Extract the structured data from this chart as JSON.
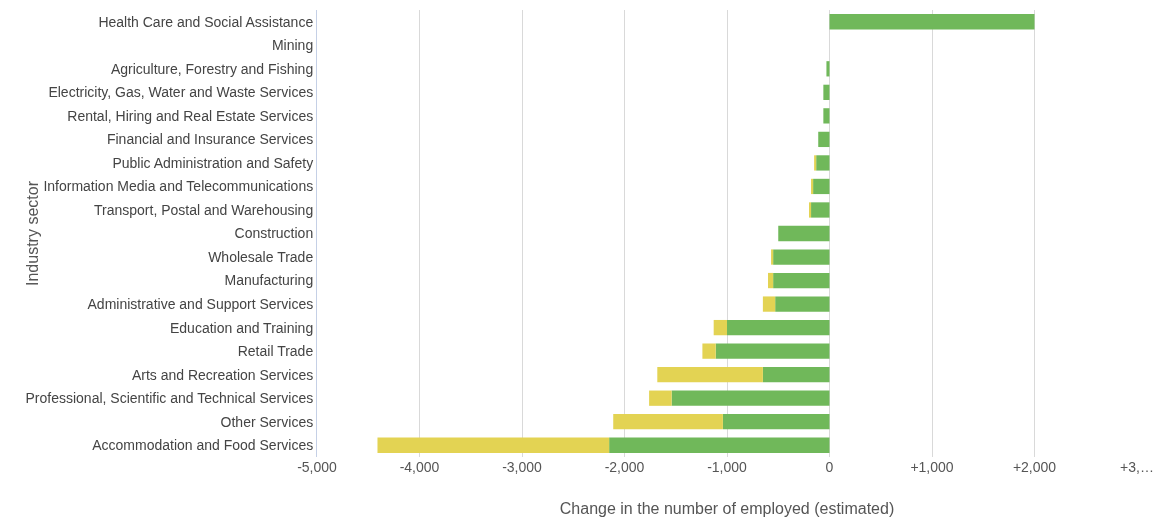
{
  "chart_data": {
    "type": "bar",
    "orientation": "horizontal",
    "stacked": true,
    "xlabel": "Change in the number of employed (estimated)",
    "ylabel": "Industry sector",
    "categories": [
      "Health Care and Social Assistance",
      "Mining",
      "Agriculture, Forestry and Fishing",
      "Electricity, Gas, Water and Waste Services",
      "Rental, Hiring and Real Estate Services",
      "Financial and Insurance Services",
      "Public Administration and Safety",
      "Information Media and Telecommunications",
      "Transport, Postal and Warehousing",
      "Construction",
      "Wholesale Trade",
      "Manufacturing",
      "Administrative and Support Services",
      "Education and Training",
      "Retail Trade",
      "Arts and Recreation Services",
      "Professional, Scientific and Technical Services",
      "Other Services",
      "Accommodation and Food Services"
    ],
    "series": [
      {
        "color": "#70b85a",
        "values": [
          2000,
          0,
          -30,
          -60,
          -60,
          -110,
          -130,
          -160,
          -180,
          -500,
          -550,
          -550,
          -530,
          -1000,
          -1110,
          -650,
          -1540,
          -1040,
          -2150
        ]
      },
      {
        "color": "#e3d353",
        "values": [
          0,
          0,
          0,
          0,
          0,
          0,
          -20,
          -20,
          -20,
          0,
          -20,
          -50,
          -120,
          -130,
          -130,
          -1030,
          -220,
          -1070,
          -2260
        ]
      }
    ],
    "xlim": [
      -5000,
      3000
    ],
    "xticks": [
      {
        "value": -5000,
        "label": "-5,000"
      },
      {
        "value": -4000,
        "label": "-4,000"
      },
      {
        "value": -3000,
        "label": "-3,000"
      },
      {
        "value": -2000,
        "label": "-2,000"
      },
      {
        "value": -1000,
        "label": "-1,000"
      },
      0,
      {
        "value": 1000,
        "label": "+1,000"
      },
      {
        "value": 2000,
        "label": "+2,000"
      },
      {
        "value": 3000,
        "label": "+3,…"
      }
    ],
    "grid": "x"
  }
}
